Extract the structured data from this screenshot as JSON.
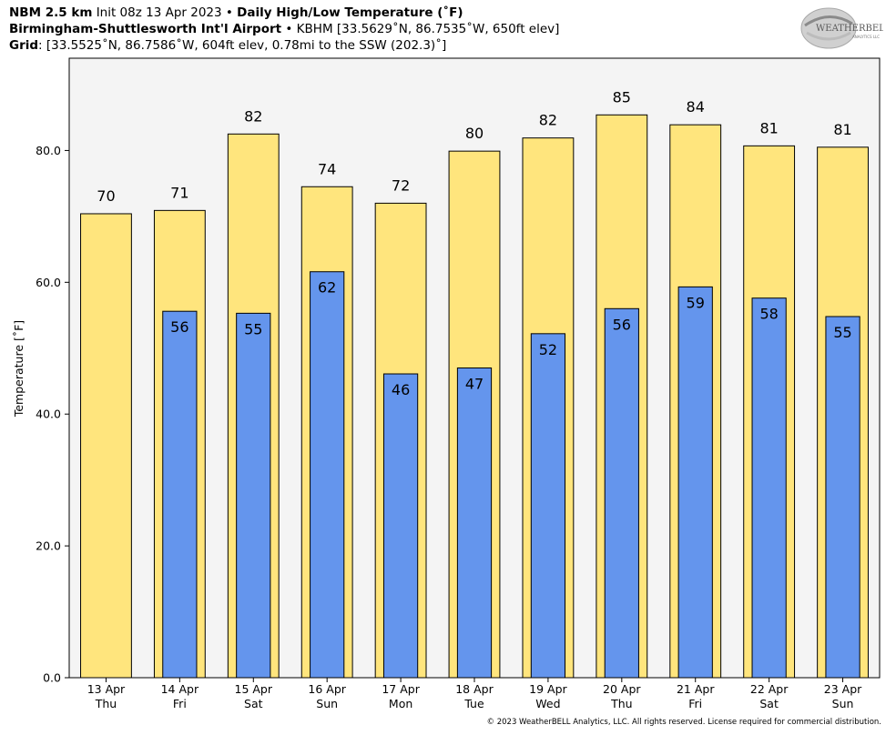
{
  "header": {
    "line1": {
      "model": "NBM 2.5 km",
      "init": "Init 08z 13 Apr 2023",
      "sep": "•",
      "product": "Daily High/Low Temperature (˚F)"
    },
    "line2": {
      "station": "Birmingham-Shuttlesworth Int'l Airport",
      "sep": "•",
      "info": "KBHM [33.5629˚N, 86.7535˚W, 650ft elev]"
    },
    "line3": {
      "label": "Grid",
      "info": ": [33.5525˚N, 86.7586˚W, 604ft elev, 0.78mi to the SSW (202.3)˚]"
    }
  },
  "logo": {
    "text_main": "WEATHERBELL",
    "text_sub": "ANALYTICS LLC"
  },
  "footer": {
    "copyright": "© 2023 WeatherBELL Analytics, LLC. All rights reserved. License required for commercial distribution."
  },
  "colors": {
    "high": "#ffe57d",
    "low": "#6495ed",
    "plot_bg": "#f4f4f4",
    "edge": "#000000"
  },
  "chart_data": {
    "type": "bar",
    "ylabel": "Temperature [˚F]",
    "xlabel": "",
    "ylim": [
      0,
      94
    ],
    "yticks": [
      0.0,
      20.0,
      40.0,
      60.0,
      80.0
    ],
    "grid": false,
    "categories": [
      [
        "13 Apr",
        "Thu"
      ],
      [
        "14 Apr",
        "Fri"
      ],
      [
        "15 Apr",
        "Sat"
      ],
      [
        "16 Apr",
        "Sun"
      ],
      [
        "17 Apr",
        "Mon"
      ],
      [
        "18 Apr",
        "Tue"
      ],
      [
        "19 Apr",
        "Wed"
      ],
      [
        "20 Apr",
        "Thu"
      ],
      [
        "21 Apr",
        "Fri"
      ],
      [
        "22 Apr",
        "Sat"
      ],
      [
        "23 Apr",
        "Sun"
      ]
    ],
    "series": [
      {
        "key": "high",
        "values": [
          70.4,
          70.9,
          82.5,
          74.5,
          72.0,
          79.9,
          81.9,
          85.4,
          83.9,
          80.7,
          80.5
        ],
        "labels": [
          "70",
          "71",
          "82",
          "74",
          "72",
          "80",
          "82",
          "85",
          "84",
          "81",
          "81"
        ]
      },
      {
        "key": "low",
        "values": [
          null,
          55.6,
          55.3,
          61.6,
          46.1,
          47.0,
          52.2,
          56.0,
          59.3,
          57.6,
          54.8
        ],
        "labels": [
          null,
          "56",
          "55",
          "62",
          "46",
          "47",
          "52",
          "56",
          "59",
          "58",
          "55"
        ]
      }
    ]
  }
}
